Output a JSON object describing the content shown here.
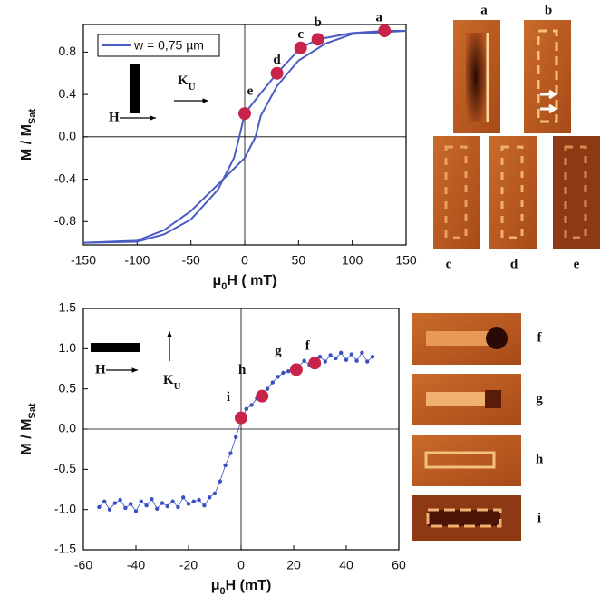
{
  "chart_data": [
    {
      "type": "line",
      "xlabel": {
        "pre": "μ",
        "sub": "0",
        "post": "H ( mT)"
      },
      "ylabel": {
        "main": "M / M",
        "sub": "Sat"
      },
      "xlim": [
        -150,
        150
      ],
      "ylim": [
        -1.02,
        1.06
      ],
      "xticks": [
        -150,
        -100,
        -50,
        0,
        50,
        100,
        150
      ],
      "yticks": [
        -0.8,
        -0.4,
        {
          "value": 0,
          "label": "0.0"
        },
        0.4,
        0.8
      ],
      "legend": "top-left",
      "series": [
        {
          "name": "w = 0,75 µm",
          "color": "#4a5cc4",
          "x": [
            150,
            130,
            100,
            68,
            52,
            30,
            10,
            0,
            -5,
            -10,
            -25,
            -50,
            -75,
            -100,
            -150
          ],
          "values": [
            1.0,
            1.0,
            0.98,
            0.92,
            0.84,
            0.6,
            0.35,
            0.22,
            0.0,
            -0.2,
            -0.5,
            -0.78,
            -0.92,
            -0.99,
            -1.0
          ]
        },
        {
          "color": "#4a5cc4",
          "x": [
            -150,
            -100,
            -75,
            -50,
            -25,
            0,
            10,
            15,
            30,
            50,
            75,
            100,
            150
          ],
          "values": [
            -1.0,
            -0.98,
            -0.88,
            -0.7,
            -0.45,
            -0.2,
            0.0,
            0.2,
            0.48,
            0.72,
            0.88,
            0.97,
            1.0
          ]
        }
      ],
      "markers": {
        "color": "#c8244a",
        "x": [
          130,
          68,
          52,
          30,
          0
        ],
        "y": [
          1.0,
          0.92,
          0.84,
          0.6,
          0.22
        ],
        "labels": [
          "a",
          "b",
          "c",
          "d",
          "e"
        ]
      },
      "annotations": {
        "field": "H",
        "anisotropy": {
          "main": "K",
          "sub": "U"
        }
      },
      "panel_labels": [
        "a",
        "b",
        "c",
        "d",
        "e"
      ]
    },
    {
      "type": "line",
      "xlabel": {
        "pre": "μ",
        "sub": "0",
        "post": "H (mT)"
      },
      "ylabel": {
        "main": "M / M",
        "sub": "Sat"
      },
      "xlim": [
        -60,
        60
      ],
      "ylim": [
        -1.5,
        1.5
      ],
      "xticks": [
        -60,
        -40,
        -20,
        0,
        20,
        40,
        60
      ],
      "yticks": [
        -1.5,
        {
          "value": -1,
          "label": "-1.0"
        },
        -0.5,
        {
          "value": 0,
          "label": "0.0"
        },
        0.5,
        {
          "value": 1,
          "label": "1.0"
        },
        1.5
      ],
      "series": [
        {
          "color": "#3b4fc0",
          "x": [
            -54,
            -52,
            -50,
            -48,
            -46,
            -44,
            -42,
            -40,
            -38,
            -36,
            -34,
            -32,
            -30,
            -28,
            -26,
            -24,
            -22,
            -20,
            -18,
            -16,
            -14,
            -12,
            -10,
            -8,
            -6,
            -4,
            -2,
            0,
            2,
            4,
            6,
            8,
            10,
            12,
            14,
            16,
            18,
            20,
            22,
            24,
            26,
            28,
            30,
            32,
            34,
            36,
            38,
            40,
            42,
            44,
            46,
            48,
            50
          ],
          "values": [
            -0.97,
            -0.9,
            -1.0,
            -0.92,
            -0.88,
            -0.98,
            -0.93,
            -1.02,
            -0.9,
            -0.95,
            -0.87,
            -0.99,
            -0.92,
            -0.96,
            -0.9,
            -0.97,
            -0.85,
            -0.93,
            -0.9,
            -0.88,
            -0.95,
            -0.85,
            -0.8,
            -0.65,
            -0.45,
            -0.3,
            -0.1,
            0.1,
            0.25,
            0.3,
            0.38,
            0.42,
            0.5,
            0.58,
            0.65,
            0.7,
            0.72,
            0.76,
            0.78,
            0.85,
            0.8,
            0.86,
            0.9,
            0.84,
            0.92,
            0.88,
            0.95,
            0.86,
            0.93,
            0.85,
            0.95,
            0.84,
            0.9
          ]
        }
      ],
      "markers": {
        "color": "#c8244a",
        "x": [
          28,
          21,
          8,
          0
        ],
        "y": [
          0.82,
          0.74,
          0.41,
          0.14
        ],
        "labels": [
          "f",
          "g",
          "h",
          "i"
        ]
      },
      "annotations": {
        "field": "H",
        "anisotropy": {
          "main": "K",
          "sub": "U"
        }
      },
      "panel_labels": [
        "f",
        "g",
        "h",
        "i"
      ]
    }
  ]
}
